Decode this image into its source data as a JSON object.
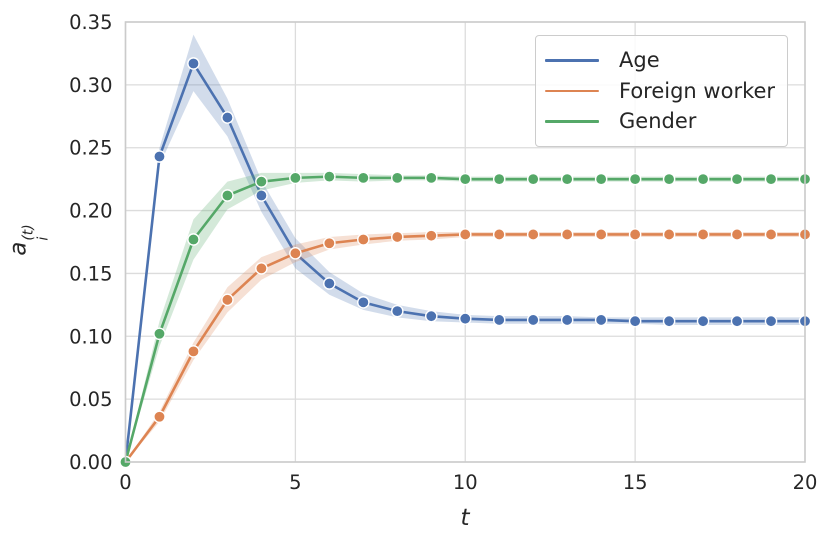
{
  "chart_data": {
    "type": "line",
    "x": [
      0,
      1,
      2,
      3,
      4,
      5,
      6,
      7,
      8,
      9,
      10,
      11,
      12,
      13,
      14,
      15,
      16,
      17,
      18,
      19,
      20
    ],
    "series": [
      {
        "name": "Age",
        "color": "#4C72B0",
        "values": [
          0.0,
          0.243,
          0.317,
          0.274,
          0.212,
          0.166,
          0.142,
          0.127,
          0.12,
          0.116,
          0.114,
          0.113,
          0.113,
          0.113,
          0.113,
          0.112,
          0.112,
          0.112,
          0.112,
          0.112,
          0.112
        ],
        "band_upper": [
          0.0,
          0.25,
          0.34,
          0.289,
          0.224,
          0.178,
          0.151,
          0.134,
          0.125,
          0.12,
          0.117,
          0.116,
          0.116,
          0.116,
          0.115,
          0.115,
          0.115,
          0.115,
          0.115,
          0.115,
          0.115
        ],
        "band_lower": [
          0.0,
          0.236,
          0.295,
          0.259,
          0.199,
          0.154,
          0.133,
          0.121,
          0.115,
          0.112,
          0.111,
          0.11,
          0.11,
          0.11,
          0.11,
          0.11,
          0.109,
          0.109,
          0.109,
          0.109,
          0.109
        ]
      },
      {
        "name": "Foreign worker",
        "color": "#DD8452",
        "values": [
          0.0,
          0.036,
          0.088,
          0.129,
          0.154,
          0.166,
          0.174,
          0.177,
          0.179,
          0.18,
          0.181,
          0.181,
          0.181,
          0.181,
          0.181,
          0.181,
          0.181,
          0.181,
          0.181,
          0.181,
          0.181
        ],
        "band_upper": [
          0.0,
          0.04,
          0.095,
          0.139,
          0.163,
          0.173,
          0.179,
          0.181,
          0.182,
          0.183,
          0.183,
          0.183,
          0.183,
          0.183,
          0.183,
          0.183,
          0.183,
          0.183,
          0.183,
          0.183,
          0.183
        ],
        "band_lower": [
          0.0,
          0.032,
          0.081,
          0.119,
          0.145,
          0.159,
          0.169,
          0.173,
          0.176,
          0.177,
          0.179,
          0.179,
          0.179,
          0.179,
          0.179,
          0.179,
          0.179,
          0.179,
          0.179,
          0.179,
          0.179
        ]
      },
      {
        "name": "Gender",
        "color": "#55A868",
        "values": [
          0.0,
          0.102,
          0.177,
          0.212,
          0.223,
          0.226,
          0.227,
          0.226,
          0.226,
          0.226,
          0.225,
          0.225,
          0.225,
          0.225,
          0.225,
          0.225,
          0.225,
          0.225,
          0.225,
          0.225,
          0.225
        ],
        "band_upper": [
          0.0,
          0.112,
          0.193,
          0.223,
          0.23,
          0.23,
          0.23,
          0.229,
          0.228,
          0.228,
          0.227,
          0.227,
          0.227,
          0.227,
          0.227,
          0.227,
          0.227,
          0.227,
          0.227,
          0.227,
          0.227
        ],
        "band_lower": [
          0.0,
          0.092,
          0.161,
          0.201,
          0.216,
          0.222,
          0.224,
          0.223,
          0.224,
          0.224,
          0.223,
          0.223,
          0.223,
          0.223,
          0.223,
          0.223,
          0.223,
          0.223,
          0.223,
          0.223,
          0.223
        ]
      }
    ],
    "title": "",
    "xlabel": "t",
    "ylabel": {
      "base": "a",
      "sub": "i",
      "sup": "(t)"
    },
    "xlim": [
      0,
      20
    ],
    "ylim": [
      0,
      0.35
    ],
    "xticks": {
      "values": [
        0,
        5,
        10,
        15,
        20
      ],
      "labels": [
        "0",
        "5",
        "10",
        "15",
        "20"
      ]
    },
    "yticks": {
      "values": [
        0.0,
        0.05,
        0.1,
        0.15,
        0.2,
        0.25,
        0.3,
        0.35
      ],
      "labels": [
        "0.00",
        "0.05",
        "0.10",
        "0.15",
        "0.20",
        "0.25",
        "0.30",
        "0.35"
      ]
    },
    "grid": true,
    "legend_position": "upper right",
    "band_alpha": 0.25,
    "grid_color": "#dcdcdc",
    "frame_color": "#cbcbcb",
    "text_color": "#262626",
    "background_color": "#ffffff"
  }
}
